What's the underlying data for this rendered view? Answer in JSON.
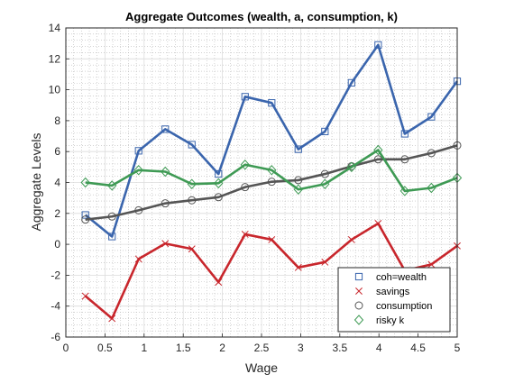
{
  "chart_data": {
    "type": "line",
    "title": "Aggregate Outcomes (wealth, a, consumption, k)",
    "xlabel": "Wage",
    "ylabel": "Aggregate Levels",
    "xlim": [
      0,
      5
    ],
    "ylim": [
      -6,
      14
    ],
    "xticks": [
      0,
      0.5,
      1,
      1.5,
      2,
      2.5,
      3,
      3.5,
      4,
      4.5,
      5
    ],
    "yticks": [
      -6,
      -4,
      -2,
      0,
      2,
      4,
      6,
      8,
      10,
      12,
      14
    ],
    "grid": true,
    "minor_grid": true,
    "legend_position": "bottom-right",
    "x": [
      0.25,
      0.59,
      0.93,
      1.27,
      1.61,
      1.95,
      2.29,
      2.63,
      2.97,
      3.31,
      3.65,
      3.99,
      4.33,
      4.67,
      5.0
    ],
    "series": [
      {
        "name": "coh=wealth",
        "marker": "square",
        "color": "#3a65ad",
        "values": [
          1.9,
          0.5,
          6.05,
          7.45,
          6.45,
          4.55,
          9.55,
          9.15,
          6.15,
          7.3,
          10.45,
          12.9,
          7.15,
          8.25,
          10.55
        ]
      },
      {
        "name": "savings",
        "marker": "x",
        "color": "#c8262c",
        "values": [
          -3.35,
          -4.8,
          -0.95,
          0.05,
          -0.3,
          -2.45,
          0.65,
          0.3,
          -1.5,
          -1.15,
          0.3,
          1.35,
          -1.7,
          -1.3,
          -0.1
        ]
      },
      {
        "name": "consumption",
        "marker": "circle",
        "color": "#555555",
        "values": [
          1.6,
          1.8,
          2.2,
          2.65,
          2.85,
          3.05,
          3.7,
          4.05,
          4.15,
          4.55,
          5.05,
          5.5,
          5.5,
          5.9,
          6.4
        ]
      },
      {
        "name": "risky k",
        "marker": "diamond",
        "color": "#3e9a54",
        "values": [
          4.0,
          3.8,
          4.8,
          4.7,
          3.9,
          3.95,
          5.15,
          4.8,
          3.55,
          3.9,
          5.0,
          6.1,
          3.45,
          3.65,
          4.3
        ]
      }
    ]
  }
}
